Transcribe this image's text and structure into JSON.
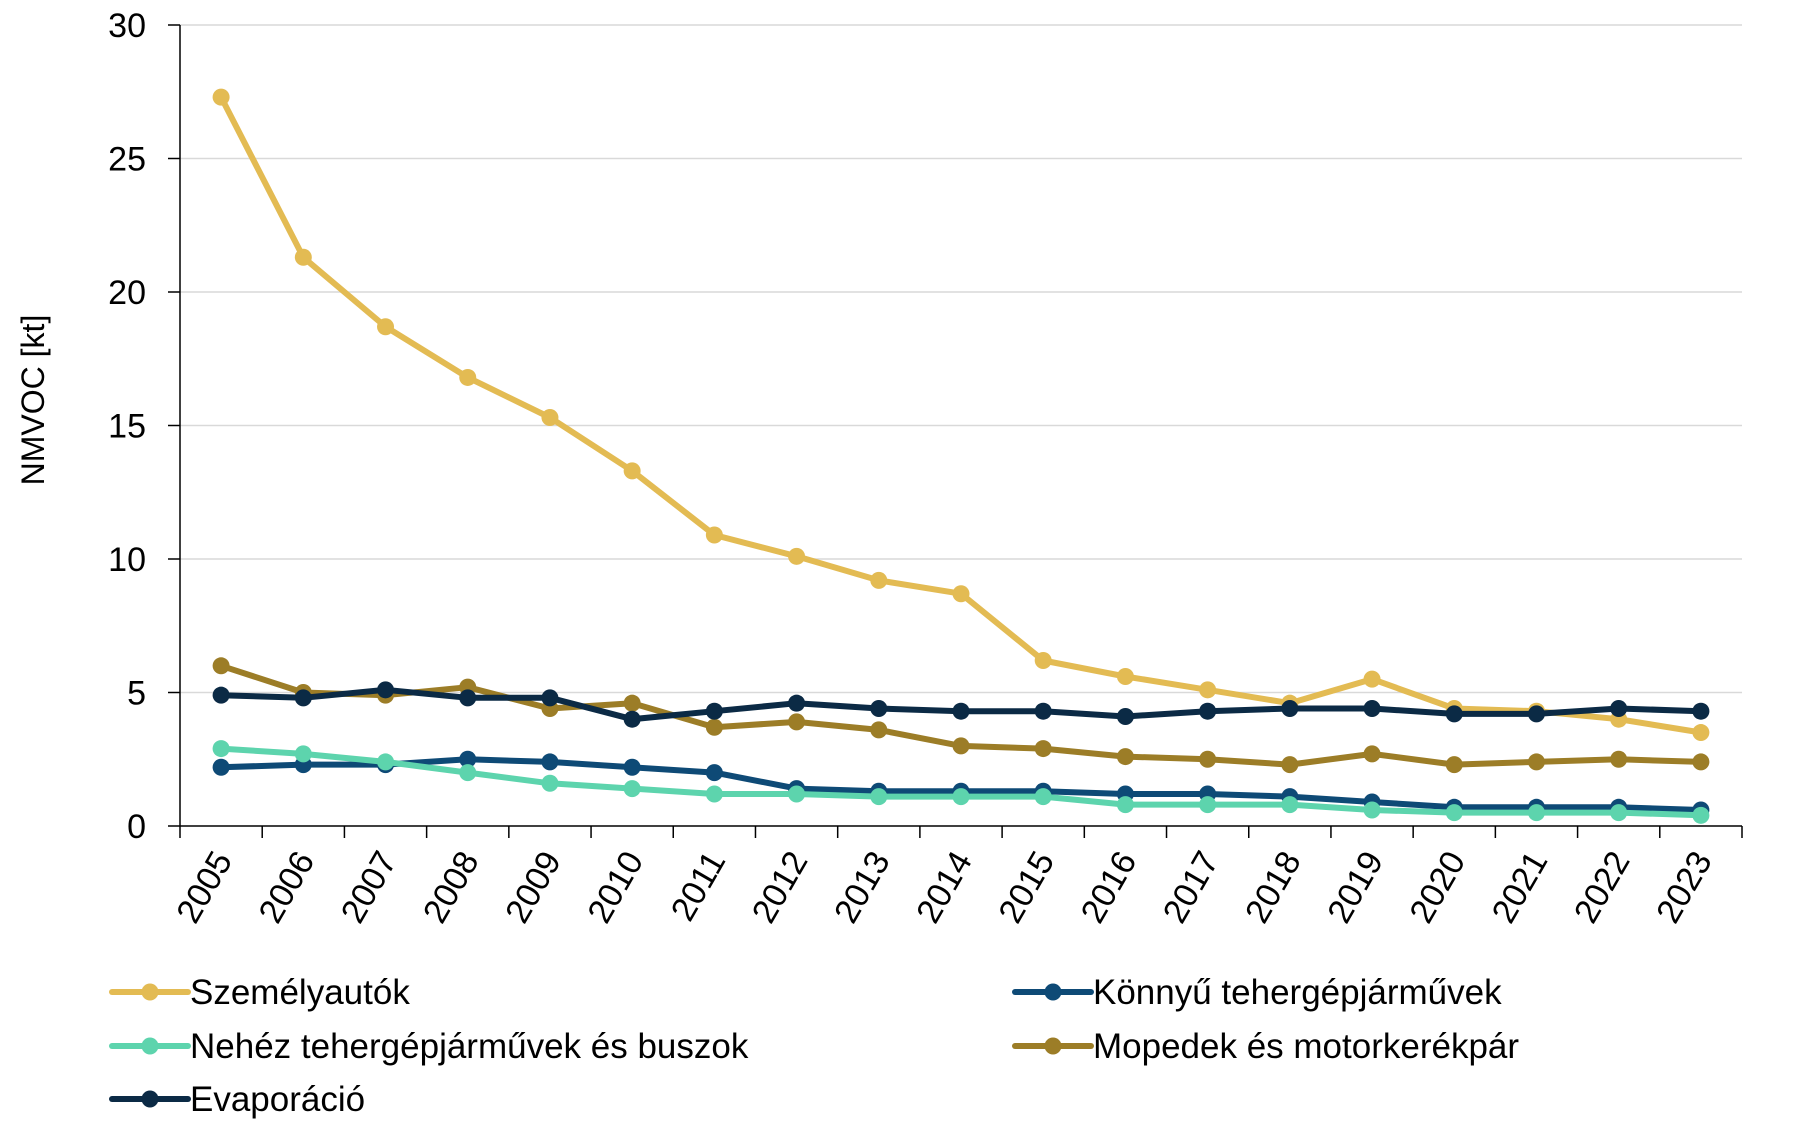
{
  "chart_data": {
    "type": "line",
    "title": "",
    "xlabel": "",
    "ylabel": "NMVOC [kt]",
    "ylim": [
      0,
      30
    ],
    "yticks": [
      0,
      5,
      10,
      15,
      20,
      25,
      30
    ],
    "grid": "horizontal",
    "legend_position": "bottom",
    "categories": [
      "2005",
      "2006",
      "2007",
      "2008",
      "2009",
      "2010",
      "2011",
      "2012",
      "2013",
      "2014",
      "2015",
      "2016",
      "2017",
      "2018",
      "2019",
      "2020",
      "2021",
      "2022",
      "2023"
    ],
    "series": [
      {
        "name": "Személyautók",
        "color": "#E3BB53",
        "values": [
          27.3,
          21.3,
          18.7,
          16.8,
          15.3,
          13.3,
          10.9,
          10.1,
          9.2,
          8.7,
          6.2,
          5.6,
          5.1,
          4.6,
          5.5,
          4.4,
          4.3,
          4.0,
          3.5
        ]
      },
      {
        "name": "Könnyű tehergépjárművek",
        "color": "#0E4A76",
        "values": [
          2.2,
          2.3,
          2.3,
          2.5,
          2.4,
          2.2,
          2.0,
          1.4,
          1.3,
          1.3,
          1.3,
          1.2,
          1.2,
          1.1,
          0.9,
          0.7,
          0.7,
          0.7,
          0.6
        ]
      },
      {
        "name": "Nehéz tehergépjárművek és buszok",
        "color": "#5DD4AD",
        "values": [
          2.9,
          2.7,
          2.4,
          2.0,
          1.6,
          1.4,
          1.2,
          1.2,
          1.1,
          1.1,
          1.1,
          0.8,
          0.8,
          0.8,
          0.6,
          0.5,
          0.5,
          0.5,
          0.4
        ]
      },
      {
        "name": "Mopedek és motorkerékpár",
        "color": "#9C7D27",
        "values": [
          6.0,
          5.0,
          4.9,
          5.2,
          4.4,
          4.6,
          3.7,
          3.9,
          3.6,
          3.0,
          2.9,
          2.6,
          2.5,
          2.3,
          2.7,
          2.3,
          2.4,
          2.5,
          2.4
        ]
      },
      {
        "name": "Evaporáció",
        "color": "#0B2A45",
        "values": [
          4.9,
          4.8,
          5.1,
          4.8,
          4.8,
          4.0,
          4.3,
          4.6,
          4.4,
          4.3,
          4.3,
          4.1,
          4.3,
          4.4,
          4.4,
          4.2,
          4.2,
          4.4,
          4.3
        ]
      }
    ]
  }
}
